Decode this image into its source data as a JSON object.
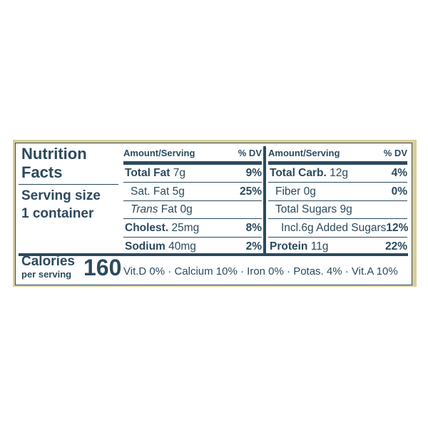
{
  "title": "Nutrition Facts",
  "serving_size_label": "Serving size",
  "serving_size": "1 container",
  "calories_label": "Calories",
  "calories_sub": "per serving",
  "calories": "160",
  "columns": [
    {
      "header_amount": "Amount/Serving",
      "header_dv": "% DV",
      "rows": [
        {
          "name": "Total Fat",
          "amount": "7g",
          "dv": "9%",
          "bold": true
        },
        {
          "name": "Sat. Fat",
          "amount": "5g",
          "dv": "25%",
          "indent": 1
        },
        {
          "name_italic": "Trans",
          "name": "Fat",
          "amount": "0g",
          "indent": 1
        },
        {
          "name": "Cholest.",
          "amount": "25mg",
          "dv": "8%",
          "bold": true
        },
        {
          "name": "Sodium",
          "amount": "40mg",
          "dv": "2%",
          "bold": true
        }
      ]
    },
    {
      "header_amount": "Amount/Serving",
      "header_dv": "% DV",
      "rows": [
        {
          "name": "Total Carb.",
          "amount": "12g",
          "dv": "4%",
          "bold": true
        },
        {
          "name": "Fiber",
          "amount": "0g",
          "dv": "0%",
          "indent": 1
        },
        {
          "name": "Total Sugars",
          "amount": "9g",
          "indent": 1
        },
        {
          "name": "Incl.6g Added Sugars",
          "dv": "12%",
          "indent": 2
        },
        {
          "name": "Protein",
          "amount": "11g",
          "dv": "22%",
          "bold": true
        }
      ]
    }
  ],
  "vitamins": [
    "Vit.D 0%",
    "Calcium 10%",
    "Iron 0%",
    "Potas. 4%",
    "Vit.A 10%"
  ],
  "separator": "·"
}
